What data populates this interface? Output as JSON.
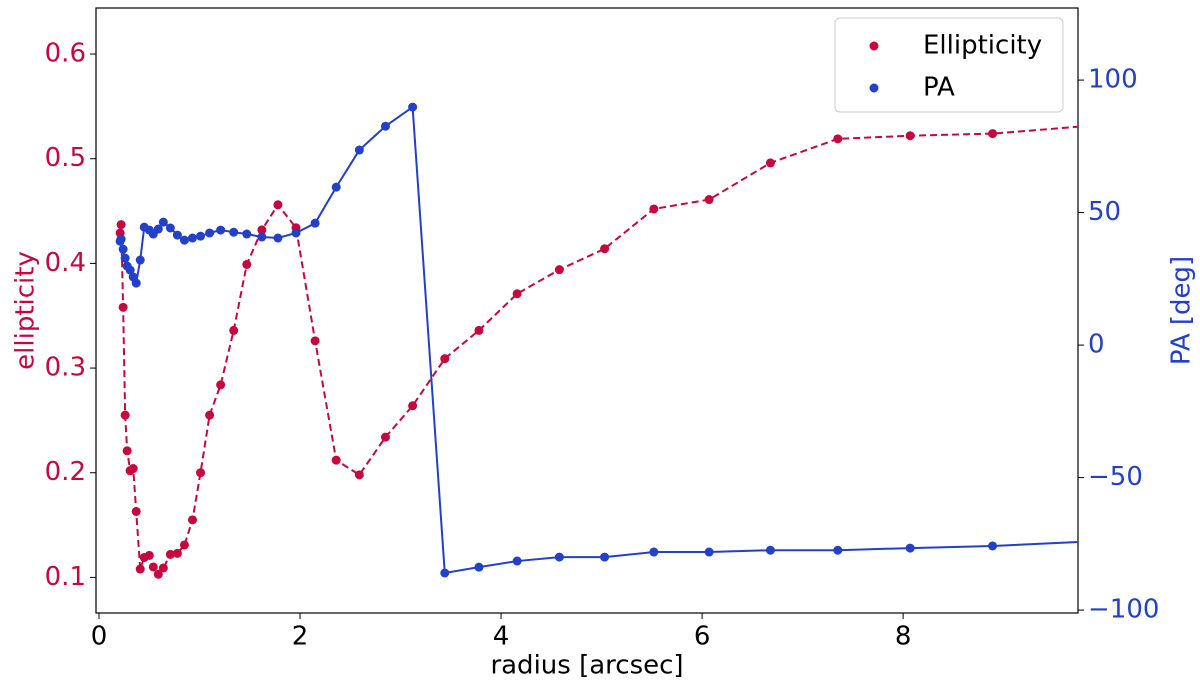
{
  "chart_data": {
    "type": "line",
    "x": [
      0.21,
      0.22,
      0.24,
      0.26,
      0.28,
      0.31,
      0.34,
      0.37,
      0.41,
      0.45,
      0.5,
      0.54,
      0.59,
      0.64,
      0.71,
      0.78,
      0.85,
      0.93,
      1.01,
      1.1,
      1.21,
      1.34,
      1.47,
      1.62,
      1.78,
      1.96,
      2.15,
      2.36,
      2.59,
      2.85,
      3.12,
      3.44,
      3.78,
      4.16,
      4.58,
      5.03,
      5.52,
      6.07,
      6.68,
      7.35,
      8.07,
      8.89,
      9.8
    ],
    "series": [
      {
        "name": "Ellipticity",
        "color": "#c8073f",
        "linestyle": "dashed",
        "axis": "y",
        "values": [
          0.429,
          0.437,
          0.358,
          0.255,
          0.221,
          0.202,
          0.204,
          0.163,
          0.108,
          0.119,
          0.121,
          0.11,
          0.103,
          0.109,
          0.122,
          0.123,
          0.131,
          0.155,
          0.2,
          0.255,
          0.284,
          0.336,
          0.399,
          0.432,
          0.456,
          0.434,
          0.326,
          0.212,
          0.198,
          0.234,
          0.264,
          0.309,
          0.336,
          0.371,
          0.394,
          0.414,
          0.452,
          0.461,
          0.496,
          0.519,
          0.522,
          0.524,
          0.531
        ]
      },
      {
        "name": "PA",
        "color": "#2340c8",
        "linestyle": "solid",
        "axis": "y2",
        "values": [
          39.2,
          40.0,
          36.2,
          32.8,
          29.8,
          28.3,
          25.7,
          23.4,
          32.1,
          44.5,
          43.4,
          41.9,
          43.8,
          46.4,
          44.2,
          41.5,
          39.6,
          40.4,
          41.1,
          42.3,
          43.4,
          42.6,
          41.9,
          40.8,
          40.4,
          42.3,
          46.0,
          59.6,
          73.6,
          82.6,
          89.8,
          -86.0,
          -83.8,
          -81.5,
          -80.0,
          -80.0,
          -78.1,
          -78.1,
          -77.4,
          -77.4,
          -76.6,
          -75.8,
          -74.2
        ]
      }
    ],
    "xlabel": "radius [arcsec]",
    "ylabel": "ellipticity",
    "y2label": "PA [deg]",
    "xlim": [
      -0.03,
      9.74
    ],
    "xticks": [
      0,
      2,
      4,
      6,
      8
    ],
    "ylim": [
      0.066,
      0.644
    ],
    "yticks": [
      0.1,
      0.2,
      0.3,
      0.4,
      0.5,
      0.6
    ],
    "y2lim": [
      -101.1,
      127.2
    ],
    "y2ticks": [
      {
        "value": -100,
        "label": "−100"
      },
      {
        "value": -50,
        "label": "−50"
      },
      0,
      50,
      100
    ],
    "legend": "upper right",
    "grid": false
  }
}
